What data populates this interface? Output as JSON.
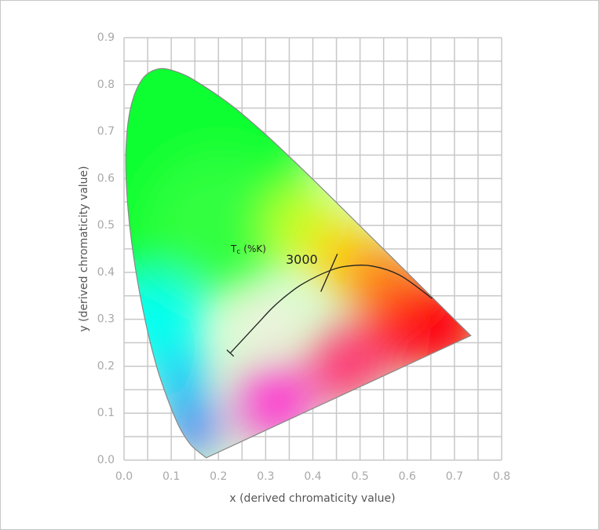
{
  "chart_data": {
    "type": "chromaticity",
    "xlabel": "x (derived chromaticity value)",
    "ylabel": "y (derived chromaticity value)",
    "xlim": [
      0,
      0.8
    ],
    "ylim": [
      0,
      0.9
    ],
    "xticks": [
      {
        "value": 0,
        "label": "0.0"
      },
      0.1,
      0.2,
      0.3,
      0.4,
      0.5,
      0.6,
      0.7,
      0.8
    ],
    "yticks": [
      {
        "value": 0,
        "label": "0.0"
      },
      0.1,
      0.2,
      0.3,
      0.4,
      0.5,
      0.6,
      0.7,
      0.8,
      0.9
    ],
    "xminor": [
      0.05,
      0.15,
      0.25,
      0.35,
      0.45,
      0.55,
      0.65,
      0.75
    ],
    "yminor": [
      0.05,
      0.15,
      0.25,
      0.35,
      0.45,
      0.55,
      0.65,
      0.75,
      0.85
    ],
    "grid": true,
    "spectral_locus": {
      "color": "#888888",
      "x": [
        0.1741,
        0.144,
        0.1241,
        0.1096,
        0.0913,
        0.0687,
        0.0454,
        0.0235,
        0.0082,
        0.0039,
        0.0139,
        0.0389,
        0.0743,
        0.1142,
        0.1547,
        0.2296,
        0.3016,
        0.3731,
        0.4441,
        0.5125,
        0.5752,
        0.627,
        0.6915,
        0.719,
        0.7347
      ],
      "y": [
        0.005,
        0.0297,
        0.0578,
        0.0868,
        0.1327,
        0.2007,
        0.295,
        0.4127,
        0.5384,
        0.6548,
        0.7502,
        0.812,
        0.8338,
        0.8262,
        0.8059,
        0.7543,
        0.6923,
        0.6245,
        0.5547,
        0.4866,
        0.4242,
        0.3725,
        0.3083,
        0.2809,
        0.2653
      ]
    },
    "planckian_locus": {
      "color": "#222222",
      "x": [
        0.6528,
        0.5857,
        0.5267,
        0.477,
        0.4369,
        0.3805,
        0.3451,
        0.3135,
        0.2807,
        0.225
      ],
      "y": [
        0.3444,
        0.3931,
        0.4133,
        0.4137,
        0.4041,
        0.3768,
        0.3516,
        0.3237,
        0.2884,
        0.228
      ]
    },
    "isotherm": {
      "x": 0.4369,
      "y": 0.4041,
      "label": "3000"
    },
    "isotherm_title": {
      "symbol": "T",
      "subscript": "c",
      "unit": "(%K)"
    }
  }
}
